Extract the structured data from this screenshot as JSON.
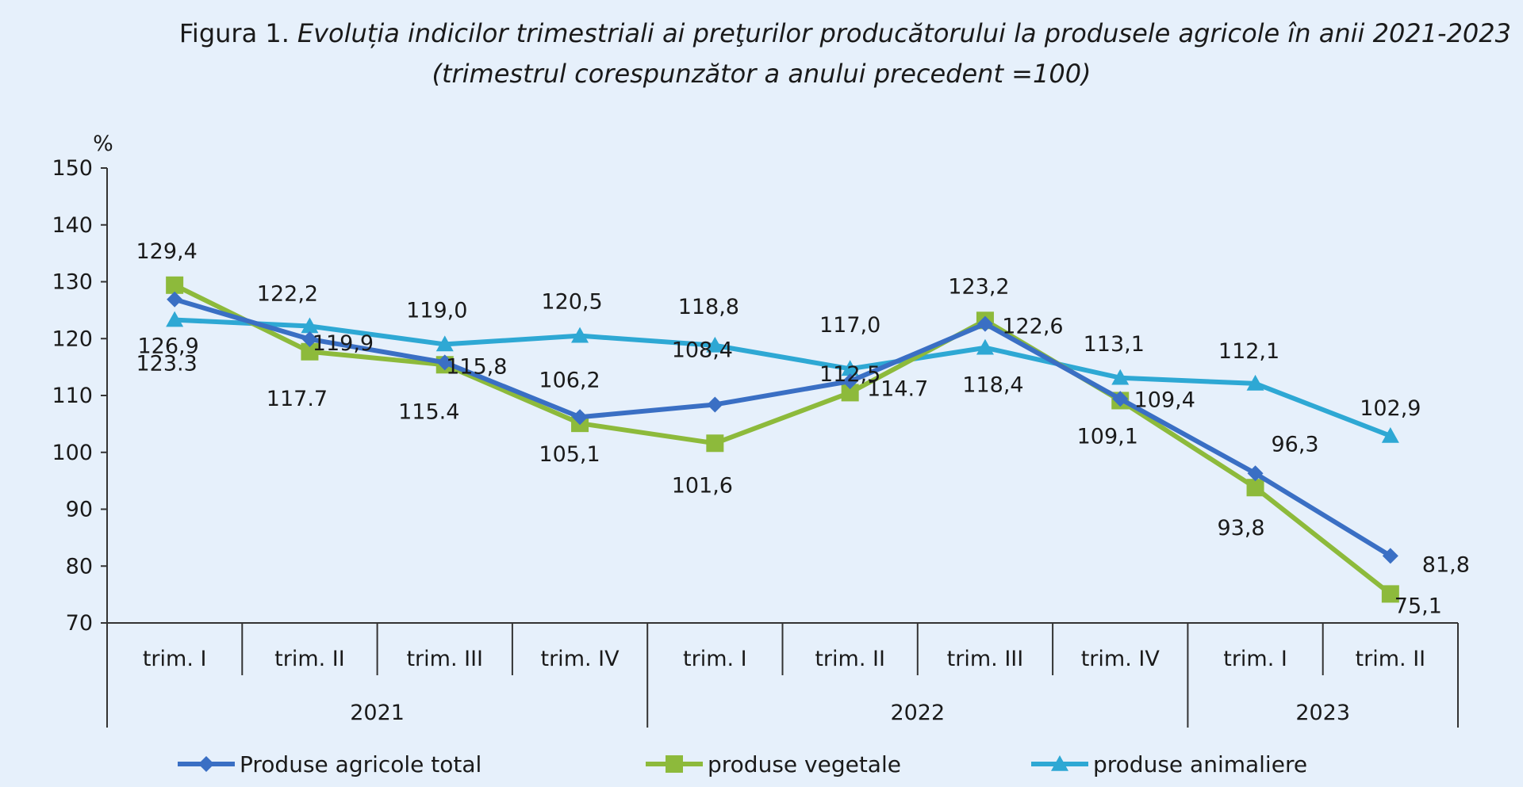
{
  "title": {
    "prefix": "Figura 1.",
    "line1": "Evoluția indicilor trimestriali ai preţurilor producătorului la produsele agricole în anii 2021-2023",
    "line2": "(trimestrul corespunzător a anului precedent =100)"
  },
  "chart_data": {
    "type": "line",
    "unit_label": "%",
    "ylim": [
      70,
      150
    ],
    "yticks": [
      70,
      80,
      90,
      100,
      110,
      120,
      130,
      140,
      150
    ],
    "categories": [
      "trim. I",
      "trim. II",
      "trim. III",
      "trim. IV",
      "trim. I",
      "trim. II",
      "trim. III",
      "trim. IV",
      "trim. I",
      "trim. II"
    ],
    "groups": [
      {
        "label": "2021",
        "span": 4
      },
      {
        "label": "2022",
        "span": 4
      },
      {
        "label": "2023",
        "span": 2
      }
    ],
    "legend_position": "bottom",
    "grid": false,
    "series": [
      {
        "name": "Produse agricole  total",
        "color": "#3a6fc4",
        "marker": "diamond",
        "values": [
          126.9,
          119.9,
          115.8,
          106.2,
          108.4,
          112.5,
          122.6,
          109.4,
          96.3,
          81.8
        ],
        "labels": [
          "126,9",
          "119,9",
          "115,8",
          "106,2",
          "108,4",
          "112,5",
          "122,6",
          "109,4",
          "96,3",
          "81,8"
        ]
      },
      {
        "name": "produse vegetale",
        "color": "#8dba3b",
        "marker": "square",
        "values": [
          129.4,
          117.7,
          115.4,
          105.1,
          101.6,
          110.5,
          123.2,
          109.1,
          93.8,
          75.1
        ],
        "labels": [
          "129,4",
          "117.7",
          "115.4",
          "105,1",
          "101,6",
          "",
          "123,2",
          "109,1",
          "93,8",
          "75,1"
        ]
      },
      {
        "name": "produse animaliere",
        "color": "#2ea8d4",
        "marker": "triangle",
        "values": [
          123.3,
          122.2,
          119.0,
          120.5,
          118.8,
          114.7,
          118.4,
          113.1,
          112.1,
          102.9
        ],
        "labels": [
          "123.3",
          "122,2",
          "119,0",
          "120,5",
          "118,8",
          "114.7",
          "118,4",
          "113,1",
          "112,1",
          "102,9"
        ]
      }
    ],
    "extra_labels": [
      "117,0"
    ]
  }
}
